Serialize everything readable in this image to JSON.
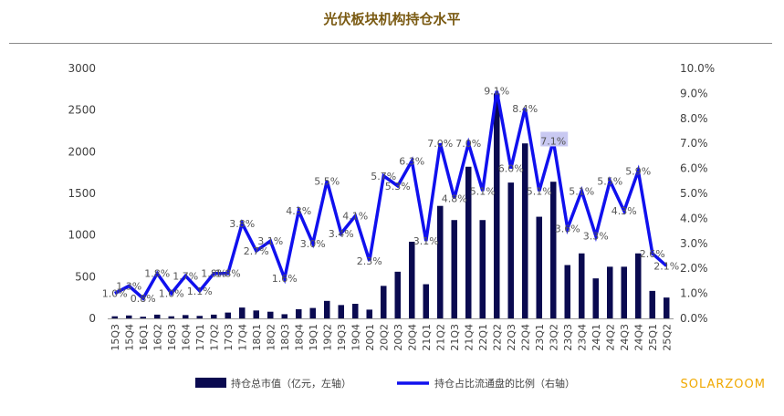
{
  "chart_data": {
    "type": "bar",
    "title": "光伏板块机构持仓水平",
    "categories": [
      "15Q3",
      "15Q4",
      "16Q1",
      "16Q2",
      "16Q3",
      "16Q4",
      "17Q1",
      "17Q2",
      "17Q3",
      "17Q4",
      "18Q1",
      "18Q2",
      "18Q3",
      "18Q4",
      "19Q1",
      "19Q2",
      "19Q3",
      "19Q4",
      "20Q1",
      "20Q2",
      "20Q3",
      "20Q4",
      "21Q1",
      "21Q2",
      "21Q3",
      "21Q4",
      "22Q1",
      "22Q2",
      "22Q3",
      "22Q4",
      "23Q1",
      "23Q2",
      "23Q3",
      "23Q4",
      "24Q1",
      "24Q2",
      "24Q3",
      "24Q4",
      "25Q1",
      "25Q2"
    ],
    "y_left_ticks": [
      "0",
      "500",
      "1000",
      "1500",
      "2000",
      "2500",
      "3000"
    ],
    "y_left_lim": [
      0,
      3000
    ],
    "y_right_ticks": [
      "0.0%",
      "1.0%",
      "2.0%",
      "3.0%",
      "4.0%",
      "5.0%",
      "6.0%",
      "7.0%",
      "8.0%",
      "9.0%",
      "10.0%"
    ],
    "y_right_lim": [
      0,
      10
    ],
    "series": [
      {
        "name": "持仓总市值（亿元，左轴）",
        "type": "bar",
        "axis": "left",
        "color": "#0a0a50",
        "values": [
          25,
          35,
          20,
          45,
          25,
          40,
          30,
          45,
          70,
          130,
          95,
          80,
          50,
          110,
          125,
          210,
          160,
          175,
          105,
          390,
          560,
          920,
          410,
          1350,
          1180,
          1820,
          1180,
          2700,
          1630,
          2100,
          1220,
          1640,
          640,
          780,
          480,
          620,
          620,
          780,
          330,
          250
        ]
      },
      {
        "name": "持仓占比流通盘的比例（右轴）",
        "type": "line",
        "axis": "right",
        "color": "#1010ee",
        "values": [
          1.0,
          1.3,
          0.8,
          1.8,
          1.0,
          1.7,
          1.1,
          1.8,
          1.8,
          3.8,
          2.7,
          3.1,
          1.6,
          4.3,
          3.0,
          5.5,
          3.4,
          4.1,
          2.3,
          5.7,
          5.3,
          6.3,
          3.1,
          7.0,
          4.8,
          7.0,
          5.1,
          9.1,
          6.0,
          8.4,
          5.1,
          7.1,
          3.6,
          5.1,
          3.3,
          5.5,
          4.3,
          5.9,
          2.6,
          2.1
        ]
      }
    ],
    "line_labels": [
      "1.0%",
      "1.3%",
      "0.8%",
      "1.8%",
      "1.0%",
      "1.7%",
      "1.1%",
      "1.8%",
      "1.8%",
      "3.8%",
      "2.7%",
      "3.1%",
      "1.6%",
      "4.3%",
      "3.0%",
      "5.5%",
      "3.4%",
      "4.1%",
      "2.3%",
      "5.7%",
      "5.3%",
      "6.3%",
      "3.1%",
      "7.0%",
      "4.8%",
      "7.0%",
      "5.1%",
      "9.1%",
      "6.0%",
      "8.4%",
      "5.1%",
      "7.1%",
      "3.6%",
      "5.1%",
      "3.3%",
      "5.5%",
      "4.3%",
      "5.9%",
      "2.6%",
      "2.1%"
    ],
    "grid": false,
    "legend_position": "bottom"
  },
  "watermark": "SOLARZOOM",
  "colors": {
    "title": "#7a5a12",
    "bar": "#0a0a50",
    "line": "#1010ee",
    "watermark": "#f0a800"
  }
}
